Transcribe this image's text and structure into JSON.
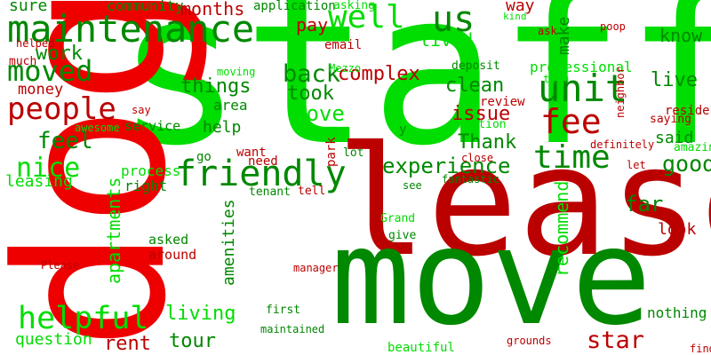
{
  "colors": {
    "bright_green": "#00dd00",
    "dark_green": "#008800",
    "red": "#ee0000",
    "dark_red": "#bb0000"
  },
  "words": [
    {
      "text": "staff",
      "color": "bright_green",
      "orientation": "horizontal"
    },
    {
      "text": "dog",
      "color": "red",
      "orientation": "vertical"
    },
    {
      "text": "lease",
      "color": "dark_red",
      "orientation": "horizontal"
    },
    {
      "text": "move",
      "color": "dark_green",
      "orientation": "horizontal"
    },
    {
      "text": "maintenance",
      "color": "dark_green",
      "orientation": "horizontal"
    },
    {
      "text": "friendly",
      "color": "dark_green",
      "orientation": "horizontal"
    },
    {
      "text": "helpful",
      "color": "bright_green",
      "orientation": "horizontal"
    },
    {
      "text": "unit",
      "color": "dark_green",
      "orientation": "horizontal"
    },
    {
      "text": "well",
      "color": "bright_green",
      "orientation": "horizontal"
    },
    {
      "text": "us",
      "color": "dark_green",
      "orientation": "horizontal"
    },
    {
      "text": "people",
      "color": "dark_red",
      "orientation": "horizontal"
    },
    {
      "text": "moved",
      "color": "dark_green",
      "orientation": "horizontal"
    },
    {
      "text": "time",
      "color": "dark_green",
      "orientation": "horizontal"
    },
    {
      "text": "fee",
      "color": "dark_red",
      "orientation": "horizontal"
    },
    {
      "text": "back",
      "color": "dark_green",
      "orientation": "horizontal"
    },
    {
      "text": "experience",
      "color": "dark_green",
      "orientation": "horizontal"
    },
    {
      "text": "feel",
      "color": "dark_green",
      "orientation": "horizontal"
    },
    {
      "text": "nice",
      "color": "bright_green",
      "orientation": "horizontal"
    },
    {
      "text": "good",
      "color": "dark_green",
      "orientation": "horizontal"
    },
    {
      "text": "love",
      "color": "bright_green",
      "orientation": "horizontal"
    },
    {
      "text": "complex",
      "color": "dark_red",
      "orientation": "horizontal"
    },
    {
      "text": "things",
      "color": "dark_green",
      "orientation": "horizontal"
    },
    {
      "text": "clean",
      "color": "dark_green",
      "orientation": "horizontal"
    },
    {
      "text": "Thank",
      "color": "dark_green",
      "orientation": "horizontal"
    },
    {
      "text": "issue",
      "color": "dark_red",
      "orientation": "horizontal"
    },
    {
      "text": "took",
      "color": "dark_green",
      "orientation": "horizontal"
    },
    {
      "text": "work",
      "color": "dark_green",
      "orientation": "horizontal"
    },
    {
      "text": "money",
      "color": "dark_red",
      "orientation": "horizontal"
    },
    {
      "text": "leasing",
      "color": "bright_green",
      "orientation": "horizontal"
    },
    {
      "text": "living",
      "color": "bright_green",
      "orientation": "horizontal"
    },
    {
      "text": "rent",
      "color": "dark_red",
      "orientation": "horizontal"
    },
    {
      "text": "tour",
      "color": "dark_green",
      "orientation": "horizontal"
    },
    {
      "text": "star",
      "color": "dark_red",
      "orientation": "horizontal"
    },
    {
      "text": "question",
      "color": "bright_green",
      "orientation": "horizontal"
    },
    {
      "text": "know",
      "color": "dark_green",
      "orientation": "horizontal"
    },
    {
      "text": "live",
      "color": "dark_green",
      "orientation": "horizontal"
    },
    {
      "text": "said",
      "color": "dark_green",
      "orientation": "horizontal"
    },
    {
      "text": "lived",
      "color": "bright_green",
      "orientation": "horizontal"
    },
    {
      "text": "pay",
      "color": "dark_red",
      "orientation": "horizontal"
    },
    {
      "text": "months",
      "color": "dark_red",
      "orientation": "horizontal"
    },
    {
      "text": "sure",
      "color": "dark_green",
      "orientation": "horizontal"
    },
    {
      "text": "community",
      "color": "dark_green",
      "orientation": "horizontal"
    },
    {
      "text": "application",
      "color": "dark_green",
      "orientation": "horizontal"
    },
    {
      "text": "asking",
      "color": "bright_green",
      "orientation": "horizontal"
    },
    {
      "text": "help",
      "color": "dark_green",
      "orientation": "horizontal"
    },
    {
      "text": "area",
      "color": "dark_green",
      "orientation": "horizontal"
    },
    {
      "text": "professional",
      "color": "bright_green",
      "orientation": "horizontal"
    },
    {
      "text": "far",
      "color": "dark_green",
      "orientation": "horizontal"
    },
    {
      "text": "look",
      "color": "dark_red",
      "orientation": "horizontal"
    },
    {
      "text": "process",
      "color": "bright_green",
      "orientation": "horizontal"
    },
    {
      "text": "right",
      "color": "dark_green",
      "orientation": "horizontal"
    },
    {
      "text": "asked",
      "color": "dark_green",
      "orientation": "horizontal"
    },
    {
      "text": "around",
      "color": "dark_red",
      "orientation": "horizontal"
    },
    {
      "text": "service",
      "color": "dark_green",
      "orientation": "horizontal"
    },
    {
      "text": "email",
      "color": "dark_red",
      "orientation": "horizontal"
    },
    {
      "text": "deposit",
      "color": "dark_green",
      "orientation": "horizontal"
    },
    {
      "text": "review",
      "color": "dark_red",
      "orientation": "horizontal"
    },
    {
      "text": "location",
      "color": "bright_green",
      "orientation": "horizontal"
    },
    {
      "text": "much",
      "color": "dark_red",
      "orientation": "horizontal"
    },
    {
      "text": "helped",
      "color": "dark_red",
      "orientation": "horizontal"
    },
    {
      "text": "way",
      "color": "dark_red",
      "orientation": "horizontal"
    },
    {
      "text": "kind",
      "color": "bright_green",
      "orientation": "horizontal"
    },
    {
      "text": "ask",
      "color": "dark_red",
      "orientation": "horizontal"
    },
    {
      "text": "poop",
      "color": "dark_red",
      "orientation": "horizontal"
    },
    {
      "text": "team",
      "color": "bright_green",
      "orientation": "horizontal"
    },
    {
      "text": "Mezzo",
      "color": "bright_green",
      "orientation": "horizontal"
    },
    {
      "text": "moving",
      "color": "bright_green",
      "orientation": "horizontal"
    },
    {
      "text": "say",
      "color": "dark_red",
      "orientation": "horizontal"
    },
    {
      "text": "awesome",
      "color": "bright_green",
      "orientation": "horizontal"
    },
    {
      "text": "y",
      "color": "dark_green",
      "orientation": "horizontal"
    },
    {
      "text": "resident",
      "color": "dark_red",
      "orientation": "horizontal"
    },
    {
      "text": "saying",
      "color": "dark_red",
      "orientation": "horizontal"
    },
    {
      "text": "definitely",
      "color": "dark_red",
      "orientation": "horizontal"
    },
    {
      "text": "amazing",
      "color": "bright_green",
      "orientation": "horizontal"
    },
    {
      "text": "want",
      "color": "dark_red",
      "orientation": "horizontal"
    },
    {
      "text": "go",
      "color": "dark_green",
      "orientation": "horizontal"
    },
    {
      "text": "need",
      "color": "dark_red",
      "orientation": "horizontal"
    },
    {
      "text": "lot",
      "color": "dark_green",
      "orientation": "horizontal"
    },
    {
      "text": "close",
      "color": "dark_red",
      "orientation": "horizontal"
    },
    {
      "text": "let",
      "color": "dark_red",
      "orientation": "horizontal"
    },
    {
      "text": "tenant",
      "color": "dark_green",
      "orientation": "horizontal"
    },
    {
      "text": "tell",
      "color": "dark_red",
      "orientation": "horizontal"
    },
    {
      "text": "fantastic",
      "color": "dark_green",
      "orientation": "horizontal"
    },
    {
      "text": "see",
      "color": "dark_green",
      "orientation": "horizontal"
    },
    {
      "text": "Grand",
      "color": "bright_green",
      "orientation": "horizontal"
    },
    {
      "text": "give",
      "color": "dark_green",
      "orientation": "horizontal"
    },
    {
      "text": "manager",
      "color": "dark_red",
      "orientation": "horizontal"
    },
    {
      "text": "Please",
      "color": "dark_red",
      "orientation": "horizontal"
    },
    {
      "text": "first",
      "color": "dark_green",
      "orientation": "horizontal"
    },
    {
      "text": "maintained",
      "color": "dark_green",
      "orientation": "horizontal"
    },
    {
      "text": "nothing",
      "color": "dark_green",
      "orientation": "horizontal"
    },
    {
      "text": "beautiful",
      "color": "bright_green",
      "orientation": "horizontal"
    },
    {
      "text": "grounds",
      "color": "dark_red",
      "orientation": "horizontal"
    },
    {
      "text": "find",
      "color": "dark_red",
      "orientation": "horizontal"
    },
    {
      "text": "apartments",
      "color": "bright_green",
      "orientation": "vertical"
    },
    {
      "text": "amenities",
      "color": "dark_green",
      "orientation": "vertical"
    },
    {
      "text": "recommend",
      "color": "bright_green",
      "orientation": "vertical"
    },
    {
      "text": "make",
      "color": "dark_green",
      "orientation": "vertical"
    },
    {
      "text": "park",
      "color": "dark_red",
      "orientation": "vertical"
    },
    {
      "text": "neighbor",
      "color": "dark_red",
      "orientation": "vertical"
    }
  ]
}
